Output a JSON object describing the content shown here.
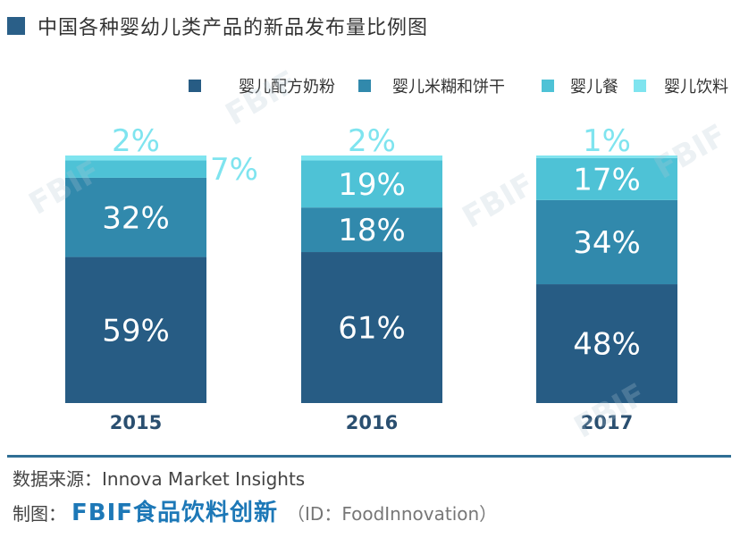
{
  "title": "中国各种婴幼儿类产品的新品发布量比例图",
  "source_text": "数据来源：Innova Market Insights",
  "credit": {
    "prefix": "制图：",
    "brand": "FBIF食品饮料创新",
    "id": "（ID：FoodInnovation）"
  },
  "watermark": "FBIF",
  "colors": {
    "formula": "#275c84",
    "cereal": "#3189ac",
    "meal": "#4ec2d6",
    "drink": "#7fe4ef",
    "title_square": "#2a5f88"
  },
  "chart_data": {
    "type": "bar",
    "stacked": true,
    "categories": [
      "2015",
      "2016",
      "2017"
    ],
    "series": [
      {
        "name": "婴儿配方奶粉",
        "values": [
          59,
          61,
          48
        ],
        "labels": [
          "59%",
          "61%",
          "48%"
        ],
        "color": "#275c84",
        "label_color": "#ffffff"
      },
      {
        "name": "婴儿米糊和饼干",
        "values": [
          32,
          18,
          34
        ],
        "labels": [
          "32%",
          "18%",
          "34%"
        ],
        "color": "#3189ac",
        "label_color": "#ffffff"
      },
      {
        "name": "婴儿餐",
        "values": [
          7,
          19,
          17
        ],
        "labels": [
          "7%",
          "19%",
          "17%"
        ],
        "color": "#4ec2d6",
        "label_color": "#ffffff"
      },
      {
        "name": "婴儿饮料",
        "values": [
          2,
          2,
          1
        ],
        "labels": [
          "2%",
          "2%",
          "1%"
        ],
        "color": "#7fe4ef",
        "label_color": "#7fe4ef"
      }
    ],
    "ylim": [
      0,
      100
    ],
    "legend_position": "top-right",
    "grid": false
  }
}
